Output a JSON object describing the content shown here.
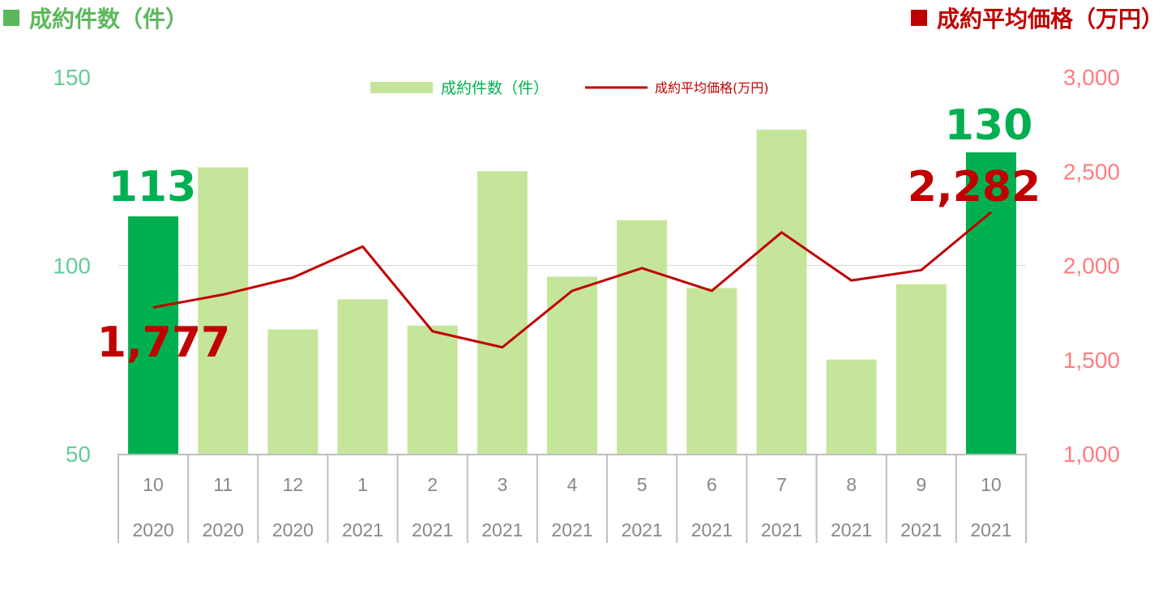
{
  "titles": {
    "left": "成約件数（件）",
    "right": "成約平均価格（万円）"
  },
  "colors": {
    "bar_light": "#c5e59b",
    "bar_highlight": "#00b050",
    "line": "#c00000",
    "left_axis_text": "#66cc99",
    "right_axis_text": "#ff7c80",
    "left_title": "#5cb85c",
    "right_title": "#c00000",
    "grid": "#d9d9d9",
    "axis_box": "#bfbfbf"
  },
  "chart_data": {
    "type": "bar",
    "categories": [
      [
        "10",
        "2020"
      ],
      [
        "11",
        "2020"
      ],
      [
        "12",
        "2020"
      ],
      [
        "1",
        "2021"
      ],
      [
        "2",
        "2021"
      ],
      [
        "3",
        "2021"
      ],
      [
        "4",
        "2021"
      ],
      [
        "5",
        "2021"
      ],
      [
        "6",
        "2021"
      ],
      [
        "7",
        "2021"
      ],
      [
        "8",
        "2021"
      ],
      [
        "9",
        "2021"
      ],
      [
        "10",
        "2021"
      ]
    ],
    "series": [
      {
        "name": "成約件数（件）",
        "type": "bar",
        "axis": "left",
        "values": [
          113,
          126,
          83,
          91,
          84,
          125,
          97,
          112,
          94,
          136,
          75,
          95,
          130
        ],
        "highlight_indices": [
          0,
          12
        ]
      },
      {
        "name": "成約平均価格(万円)",
        "type": "line",
        "axis": "right",
        "values": [
          1777,
          1845,
          1935,
          2100,
          1650,
          1565,
          1865,
          1985,
          1865,
          2175,
          1920,
          1975,
          2282
        ]
      }
    ],
    "y_left": {
      "lim": [
        50,
        150
      ],
      "ticks": [
        "50",
        "100",
        "150"
      ]
    },
    "y_right": {
      "lim": [
        1000,
        3000
      ],
      "ticks": [
        "1,000",
        "1,500",
        "2,000",
        "2,500",
        "3,000"
      ]
    },
    "grid": "horizontal at 100",
    "legend": "top-center",
    "annotations": [
      {
        "text": "113",
        "series": 0,
        "index": 0
      },
      {
        "text": "130",
        "series": 0,
        "index": 12
      },
      {
        "text": "1,777",
        "series": 1,
        "index": 0
      },
      {
        "text": "2,282",
        "series": 1,
        "index": 12
      }
    ]
  }
}
